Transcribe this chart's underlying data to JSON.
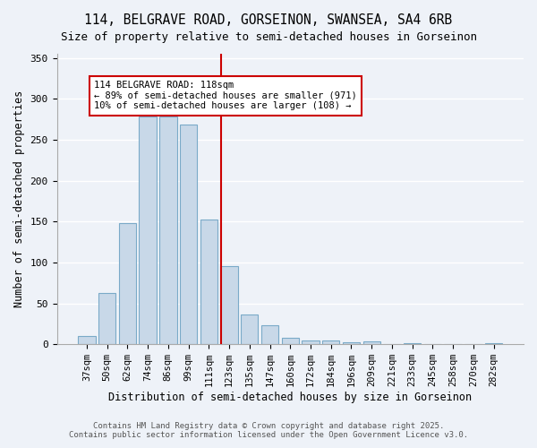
{
  "title1": "114, BELGRAVE ROAD, GORSEINON, SWANSEA, SA4 6RB",
  "title2": "Size of property relative to semi-detached houses in Gorseinon",
  "xlabel": "Distribution of semi-detached houses by size in Gorseinon",
  "ylabel": "Number of semi-detached properties",
  "categories": [
    "37sqm",
    "50sqm",
    "62sqm",
    "74sqm",
    "86sqm",
    "99sqm",
    "111sqm",
    "123sqm",
    "135sqm",
    "147sqm",
    "160sqm",
    "172sqm",
    "184sqm",
    "196sqm",
    "209sqm",
    "221sqm",
    "233sqm",
    "245sqm",
    "258sqm",
    "270sqm",
    "282sqm"
  ],
  "values": [
    10,
    63,
    148,
    278,
    278,
    268,
    152,
    95,
    36,
    23,
    8,
    5,
    5,
    2,
    3,
    0,
    1,
    0,
    0,
    0,
    1
  ],
  "bar_color": "#c8d8e8",
  "bar_edge_color": "#7aaac8",
  "bg_color": "#eef2f8",
  "grid_color": "#ffffff",
  "annotation_text": "114 BELGRAVE ROAD: 118sqm\n← 89% of semi-detached houses are smaller (971)\n10% of semi-detached houses are larger (108) →",
  "annotation_box_color": "#ffffff",
  "annotation_border_color": "#cc0000",
  "vline_color": "#cc0000",
  "footnote": "Contains HM Land Registry data © Crown copyright and database right 2025.\nContains public sector information licensed under the Open Government Licence v3.0.",
  "title_fontsize": 10.5,
  "subtitle_fontsize": 9,
  "ylabel_fontsize": 8.5,
  "xlabel_fontsize": 8.5,
  "tick_fontsize": 7.5,
  "ylim_max": 355,
  "yticks": [
    0,
    50,
    100,
    150,
    200,
    250,
    300,
    350
  ]
}
